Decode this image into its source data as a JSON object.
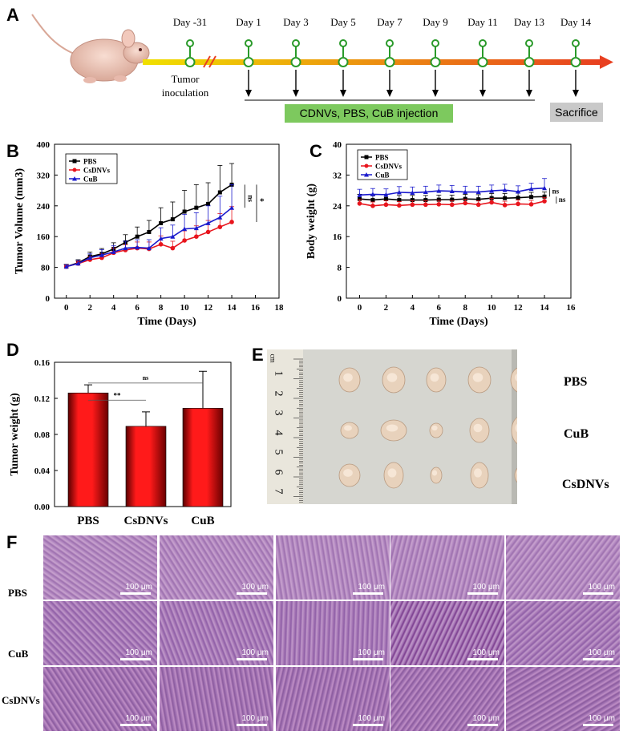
{
  "panel_labels": {
    "a": "A",
    "b": "B",
    "c": "C",
    "d": "D",
    "e": "E",
    "f": "F"
  },
  "timeline": {
    "days": [
      "Day -31",
      "Day 1",
      "Day 3",
      "Day 5",
      "Day 7",
      "Day 9",
      "Day 11",
      "Day 13",
      "Day 14"
    ],
    "inoculation_label": "Tumor inoculation",
    "injection_label": "CDNVs, PBS,  CuB injection",
    "sacrifice_label": "Sacrifice",
    "colors": {
      "start": "#f0e000",
      "end": "#e84020",
      "node": "#2a9a2a",
      "injection_box": "#7dc95e",
      "sacrifice_box": "#c9c9c9"
    }
  },
  "chart_data": [
    {
      "id": "B",
      "type": "line",
      "xlabel": "Time (Days)",
      "ylabel": "Tumor Volume (mm3)",
      "xlim": [
        -1,
        18
      ],
      "ylim": [
        0,
        400
      ],
      "xticks": [
        0,
        2,
        4,
        6,
        8,
        10,
        12,
        14,
        16,
        18
      ],
      "yticks": [
        0,
        80,
        160,
        240,
        320,
        400
      ],
      "x": [
        0,
        1,
        2,
        3,
        4,
        5,
        6,
        7,
        8,
        9,
        10,
        11,
        12,
        13,
        14
      ],
      "series": [
        {
          "name": "PBS",
          "color": "#000000",
          "marker": "square",
          "values": [
            82,
            92,
            108,
            115,
            128,
            145,
            160,
            172,
            195,
            205,
            225,
            235,
            245,
            275,
            295
          ],
          "err": [
            6,
            8,
            12,
            14,
            16,
            20,
            25,
            30,
            40,
            45,
            55,
            60,
            55,
            70,
            55
          ]
        },
        {
          "name": "CsDNVs",
          "color": "#e8141c",
          "marker": "circle",
          "values": [
            82,
            90,
            100,
            105,
            118,
            125,
            130,
            128,
            140,
            130,
            150,
            160,
            172,
            185,
            198
          ],
          "err": [
            5,
            6,
            8,
            10,
            12,
            14,
            16,
            18,
            22,
            18,
            25,
            28,
            30,
            35,
            40
          ]
        },
        {
          "name": "CuB",
          "color": "#1a1acc",
          "marker": "triangle",
          "values": [
            82,
            90,
            105,
            112,
            120,
            130,
            132,
            130,
            155,
            160,
            180,
            182,
            195,
            210,
            235
          ],
          "err": [
            5,
            8,
            10,
            14,
            16,
            18,
            20,
            22,
            28,
            30,
            38,
            40,
            45,
            55,
            60
          ]
        }
      ],
      "annotations": [
        {
          "text": "ns"
        },
        {
          "text": "*"
        }
      ]
    },
    {
      "id": "C",
      "type": "line",
      "xlabel": "Time (Days)",
      "ylabel": "Body weight (g)",
      "xlim": [
        -1,
        16
      ],
      "ylim": [
        0,
        40
      ],
      "xticks": [
        0,
        2,
        4,
        6,
        8,
        10,
        12,
        14,
        16
      ],
      "yticks": [
        0,
        8,
        16,
        24,
        32,
        40
      ],
      "x": [
        0,
        1,
        2,
        3,
        4,
        5,
        6,
        7,
        8,
        9,
        10,
        11,
        12,
        13,
        14
      ],
      "series": [
        {
          "name": "PBS",
          "color": "#000000",
          "marker": "square",
          "values": [
            25.8,
            25.5,
            25.8,
            25.5,
            25.5,
            25.5,
            25.6,
            25.6,
            25.8,
            25.7,
            26.0,
            26.0,
            26.1,
            26.3,
            26.4
          ],
          "err": [
            1.2,
            1.2,
            1.2,
            1.2,
            1.2,
            1.2,
            1.2,
            1.2,
            1.2,
            1.2,
            1.2,
            1.2,
            1.2,
            1.2,
            1.2
          ]
        },
        {
          "name": "CsDNVs",
          "color": "#e8141c",
          "marker": "circle",
          "values": [
            24.6,
            24.0,
            24.3,
            24.1,
            24.3,
            24.3,
            24.4,
            24.3,
            24.7,
            24.3,
            24.9,
            24.2,
            24.5,
            24.4,
            25.2
          ],
          "err": [
            1.0,
            1.0,
            1.0,
            1.0,
            1.0,
            1.0,
            1.0,
            1.0,
            1.0,
            1.0,
            1.0,
            1.0,
            1.0,
            1.0,
            1.0
          ]
        },
        {
          "name": "CuB",
          "color": "#1a1acc",
          "marker": "triangle",
          "values": [
            26.8,
            27.0,
            26.9,
            27.5,
            27.4,
            27.6,
            27.9,
            27.8,
            27.6,
            27.6,
            27.9,
            28.1,
            27.7,
            28.4,
            28.6
          ],
          "err": [
            1.5,
            1.5,
            1.5,
            1.5,
            1.5,
            1.5,
            1.5,
            1.5,
            1.5,
            1.5,
            1.5,
            1.5,
            1.5,
            1.5,
            2.5
          ]
        }
      ],
      "annotations": [
        {
          "text": "ns"
        },
        {
          "text": "ns"
        }
      ]
    },
    {
      "id": "D",
      "type": "bar",
      "ylabel": "Tumor weight (g)",
      "ylim": [
        0,
        0.16
      ],
      "yticks": [
        "0.00",
        "0.04",
        "0.08",
        "0.12",
        "0.16"
      ],
      "categories": [
        "PBS",
        "CsDNVs",
        "CuB"
      ],
      "values": [
        0.126,
        0.089,
        0.109
      ],
      "err": [
        0.009,
        0.016,
        0.041
      ],
      "color": "#e41414",
      "annotations": [
        {
          "text": "**"
        },
        {
          "text": "ns"
        }
      ]
    }
  ],
  "photo": {
    "ruler_numbers": [
      "1",
      "2",
      "3",
      "4",
      "5",
      "6",
      "7"
    ],
    "ruler_unit": "cm",
    "row_labels": [
      "PBS",
      "CuB",
      "CsDNVs"
    ]
  },
  "histology": {
    "row_labels": [
      "PBS",
      "CuB",
      "CsDNVs"
    ],
    "scale_bar": "100 μm"
  }
}
